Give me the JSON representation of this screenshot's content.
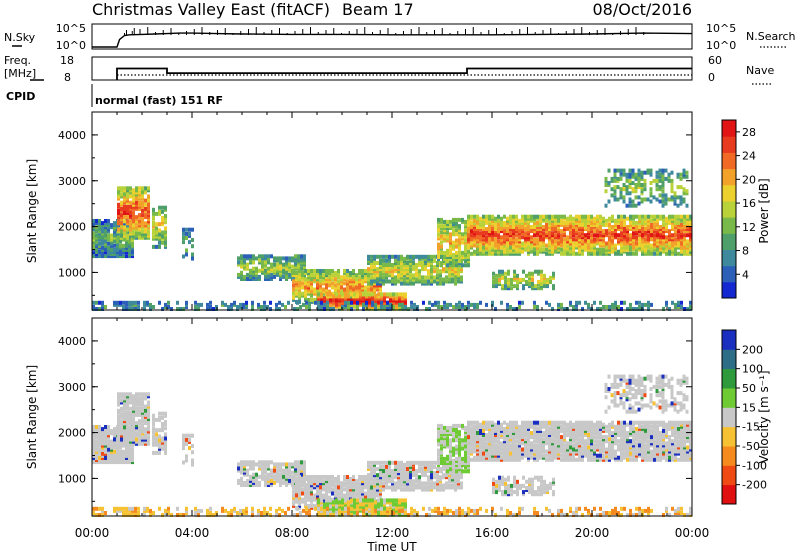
{
  "header": {
    "station": "Christmas Valley East (fitACF)",
    "beam": "Beam 17",
    "date": "08/Oct/2016"
  },
  "info_panels": {
    "nsky_label": "N.Sky",
    "nsearch_label": "N.Search",
    "nsky_ticks": [
      "10^5",
      "10^0"
    ],
    "nsearch_ticks": [
      "10^5",
      "10^0"
    ],
    "freq_label_1": "Freq.",
    "freq_label_2": "[MHz]",
    "freq_ticks": [
      "18",
      "8"
    ],
    "nave_label": "Nave",
    "nave_ticks": [
      "60",
      "0"
    ],
    "cpid_label": "CPID",
    "cpid_text": "normal (fast) 151 RF"
  },
  "chart_data": [
    {
      "type": "line",
      "name": "noise",
      "series": [
        {
          "name": "N.Sky",
          "x_hours": [
            0.0,
            1.0,
            1.1,
            1.3,
            1.5,
            2.0,
            2.5,
            3.0,
            3.5,
            4.0,
            5.0,
            6.0,
            8.0,
            10.0,
            12.0,
            14.0,
            15.0,
            16.0,
            18.0,
            20.0,
            22.0,
            24.0
          ],
          "level_fraction": [
            0.0,
            0.0,
            0.35,
            0.55,
            0.58,
            0.6,
            0.62,
            0.64,
            0.66,
            0.66,
            0.64,
            0.62,
            0.6,
            0.6,
            0.58,
            0.58,
            0.58,
            0.58,
            0.6,
            0.62,
            0.66,
            0.64
          ]
        },
        {
          "name": "N.Search",
          "style": "dotted"
        }
      ]
    },
    {
      "type": "line",
      "name": "frequency-nave",
      "series": [
        {
          "name": "Freq.",
          "x_hours": [
            1.0,
            3.0,
            3.0,
            15.0,
            15.0,
            24.0
          ],
          "values_mhz": [
            13.0,
            13.0,
            11.0,
            11.0,
            13.0,
            13.0
          ]
        },
        {
          "name": "Nave",
          "x_hours": [
            1.0,
            24.0
          ],
          "values": [
            13,
            13
          ],
          "style": "dotted"
        }
      ],
      "ylim_freq": [
        8,
        18
      ],
      "ylim_nave": [
        0,
        60
      ]
    },
    {
      "type": "heatmap",
      "name": "power",
      "ylabel": "Slant Range [km]",
      "yticks": [
        "4000",
        "3000",
        "2000",
        "1000"
      ],
      "ylim": [
        180,
        4500
      ],
      "xlim_hours": [
        0,
        24
      ],
      "colorbar": {
        "label": "Power [dB]",
        "ticks": [
          "28",
          "24",
          "20",
          "16",
          "12",
          "8",
          "4"
        ],
        "range": [
          0,
          30
        ],
        "colors": [
          "#1428d2",
          "#2b5fb8",
          "#3e8a9c",
          "#4f9f6a",
          "#79b94a",
          "#b9d23a",
          "#ebd02e",
          "#f2a12a",
          "#f06a26",
          "#e83a1f",
          "#e01414"
        ]
      }
    },
    {
      "type": "heatmap",
      "name": "velocity",
      "ylabel": "Slant Range [km]",
      "yticks": [
        "4000",
        "3000",
        "2000",
        "1000"
      ],
      "ylim": [
        180,
        4500
      ],
      "xlim_hours": [
        0,
        24
      ],
      "colorbar": {
        "label": "Velocity [m s⁻¹]",
        "ticks": [
          "200",
          "100",
          "50",
          "15",
          "-15",
          "-50",
          "-100",
          "-200"
        ],
        "colors": [
          "#1a2fc0",
          "#2d6e86",
          "#2e9a3c",
          "#6fcb34",
          "#c8c8c8",
          "#f6c233",
          "#f58a1e",
          "#ef4a14",
          "#e01010"
        ]
      }
    }
  ],
  "xaxis": {
    "ticks": [
      "00:00",
      "04:00",
      "08:00",
      "12:00",
      "16:00",
      "20:00",
      "00:00"
    ],
    "label": "Time UT"
  }
}
